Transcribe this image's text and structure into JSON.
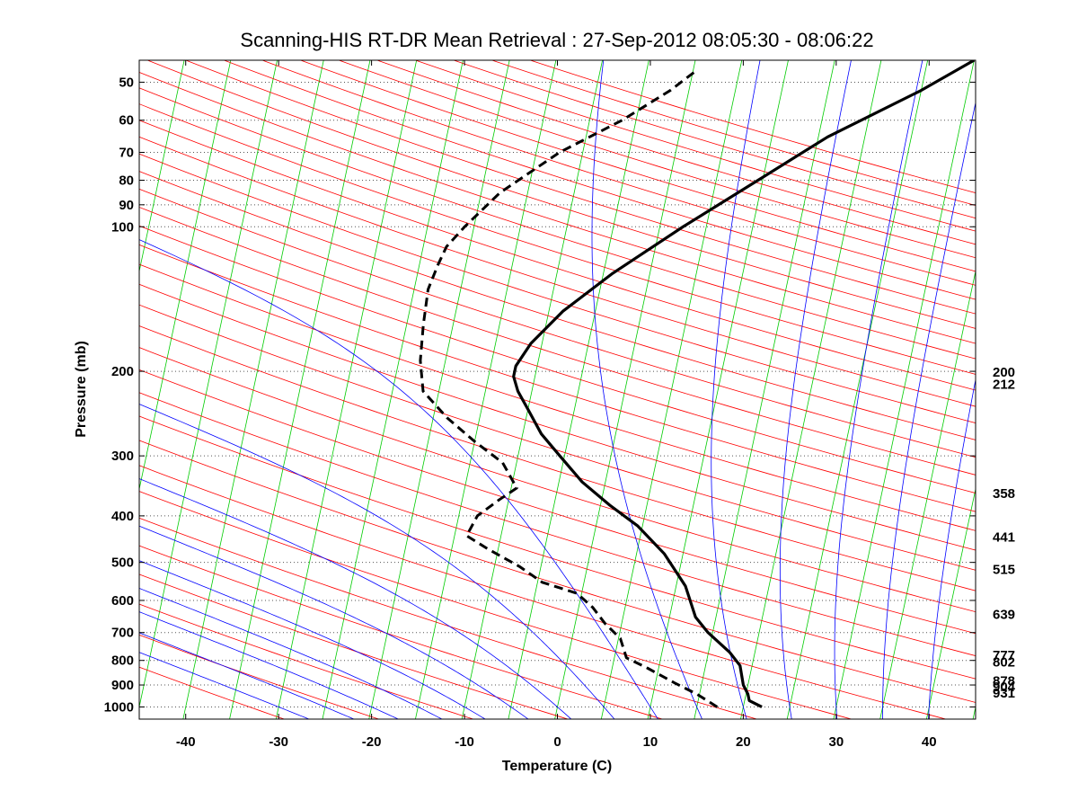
{
  "chart_data": {
    "type": "line",
    "title": "Scanning-HIS RT-DR Mean Retrieval : 27-Sep-2012 08:05:30 - 08:06:22",
    "xlabel": "Temperature (C)",
    "ylabel": "Pressure (mb)",
    "xlim": [
      -45,
      45
    ],
    "ylim": [
      1060,
      45
    ],
    "x_ticks": [
      -40,
      -30,
      -20,
      -10,
      0,
      10,
      20,
      30,
      40
    ],
    "y_ticks": [
      1000,
      900,
      800,
      700,
      600,
      500,
      400,
      300,
      200,
      100,
      90,
      80,
      70,
      60,
      50
    ],
    "y_tick_labels": [
      "1000",
      "900",
      "800",
      "700",
      "600",
      "500",
      "400",
      "300",
      "200",
      "100",
      "90",
      "80",
      "70",
      "60",
      "50"
    ],
    "grid": "horizontal dotted at pressure ticks",
    "skew_per_decade": 114,
    "colors": {
      "temperature": "#000000",
      "dewpoint": "#000000",
      "dry_adiabat": "#ff0000",
      "moist_adiabat": "#0000ff",
      "isotherm": "#00cc00"
    },
    "right_labels": [
      {
        "text": "200",
        "p": 200
      },
      {
        "text": "212",
        "p": 212
      },
      {
        "text": "358",
        "p": 358
      },
      {
        "text": "441",
        "p": 441
      },
      {
        "text": "515",
        "p": 515
      },
      {
        "text": "639",
        "p": 639
      },
      {
        "text": "777",
        "p": 777
      },
      {
        "text": "802",
        "p": 802
      },
      {
        "text": "878",
        "p": 878
      },
      {
        "text": "904",
        "p": 904
      },
      {
        "text": "931",
        "p": 931
      }
    ],
    "series": [
      {
        "name": "Temperature",
        "style": "solid",
        "points": [
          [
            22,
            1000
          ],
          [
            20.5,
            970
          ],
          [
            20.2,
            940
          ],
          [
            19.5,
            900
          ],
          [
            18.7,
            820
          ],
          [
            17.3,
            770
          ],
          [
            14.5,
            700
          ],
          [
            12.8,
            650
          ],
          [
            11.0,
            560
          ],
          [
            8.0,
            480
          ],
          [
            4.5,
            420
          ],
          [
            1.0,
            380
          ],
          [
            -2.5,
            340
          ],
          [
            -5.5,
            300
          ],
          [
            -8.0,
            270
          ],
          [
            -10.0,
            240
          ],
          [
            -11.5,
            220
          ],
          [
            -12.3,
            205
          ],
          [
            -12.3,
            195
          ],
          [
            -11.2,
            175
          ],
          [
            -8.5,
            150
          ],
          [
            -4.0,
            125
          ],
          [
            2.5,
            100
          ],
          [
            9.5,
            80
          ],
          [
            16.0,
            65
          ],
          [
            25.0,
            52
          ],
          [
            30.0,
            45
          ]
        ]
      },
      {
        "name": "Dewpoint",
        "style": "dashed",
        "points": [
          [
            17.2,
            1000
          ],
          [
            14.7,
            940
          ],
          [
            12.0,
            890
          ],
          [
            8.8,
            830
          ],
          [
            6.3,
            790
          ],
          [
            5.2,
            720
          ],
          [
            3.2,
            670
          ],
          [
            1.5,
            620
          ],
          [
            -0.5,
            580
          ],
          [
            -4.5,
            550
          ],
          [
            -7.3,
            510
          ],
          [
            -11.0,
            470
          ],
          [
            -13.7,
            440
          ],
          [
            -13.0,
            400
          ],
          [
            -11.0,
            370
          ],
          [
            -9.4,
            350
          ],
          [
            -11.5,
            310
          ],
          [
            -15.0,
            280
          ],
          [
            -18.5,
            250
          ],
          [
            -21.7,
            220
          ],
          [
            -22.7,
            190
          ],
          [
            -23.2,
            160
          ],
          [
            -23.5,
            135
          ],
          [
            -23.0,
            120
          ],
          [
            -22.5,
            110
          ],
          [
            -21.0,
            100
          ],
          [
            -18.0,
            85
          ],
          [
            -12.5,
            70
          ],
          [
            -6.5,
            60
          ],
          [
            -2.0,
            52
          ],
          [
            0.5,
            47
          ]
        ]
      }
    ]
  }
}
